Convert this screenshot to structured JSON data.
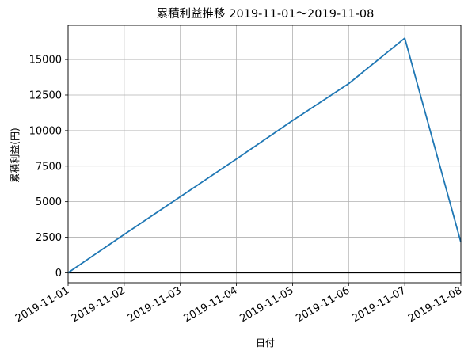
{
  "chart_data": {
    "type": "line",
    "title": "累積利益推移  2019-11-01〜2019-11-08",
    "xlabel": "日付",
    "ylabel": "累積利益(円)",
    "x": [
      "2019-11-01",
      "2019-11-02",
      "2019-11-03",
      "2019-11-04",
      "2019-11-05",
      "2019-11-06",
      "2019-11-07",
      "2019-11-08"
    ],
    "x_tick_labels": [
      "2019-11-01",
      "2019-11-02",
      "2019-11-03",
      "2019-11-04",
      "2019-11-05",
      "2019-11-06",
      "2019-11-07",
      "2019-11-08"
    ],
    "y_ticks": [
      0,
      2500,
      5000,
      7500,
      10000,
      12500,
      15000
    ],
    "y_tick_labels": [
      "0",
      "2500",
      "5000",
      "7500",
      "10000",
      "12500",
      "15000"
    ],
    "series": [
      {
        "values": [
          0,
          2700,
          5350,
          8000,
          10700,
          13300,
          16500,
          2150
        ],
        "color": "#1f77b4"
      }
    ],
    "xlim": [
      "2019-11-01",
      "2019-11-08"
    ],
    "ylim": [
      -700,
      17400
    ],
    "grid": true,
    "zero_line": {
      "y": 0,
      "color": "#000000"
    }
  }
}
